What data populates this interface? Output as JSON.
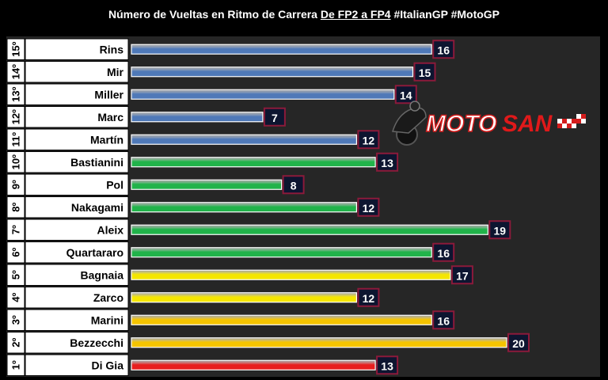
{
  "header": {
    "title_plain": "Número de Vueltas en Ritmo de Carrera ",
    "title_underlined": "De FP2 a FP4",
    "title_tail": " #ItalianGP #MotoGP"
  },
  "logo": {
    "text_moto": "MOTO",
    "text_san": "SAN"
  },
  "colors": {
    "panel": "#262626",
    "label_box": "#ffffff",
    "value_box_fill": "#0d1530",
    "value_box_border": "#8b1a3a"
  },
  "chart_data": {
    "type": "bar",
    "orientation": "horizontal",
    "title": "Número de Vueltas en Ritmo de Carrera De FP2 a FP4 #ItalianGP #MotoGP",
    "xlim": [
      0,
      20
    ],
    "grid": false,
    "legend": "none",
    "rows": [
      {
        "rank": "15º",
        "rider": "Rins",
        "value": 16,
        "color": "#4f79b8"
      },
      {
        "rank": "14º",
        "rider": "Mir",
        "value": 15,
        "color": "#4f79b8"
      },
      {
        "rank": "13º",
        "rider": "Miller",
        "value": 14,
        "color": "#4f79b8"
      },
      {
        "rank": "12º",
        "rider": "Marc",
        "value": 7,
        "color": "#4f79b8"
      },
      {
        "rank": "11º",
        "rider": "Martín",
        "value": 12,
        "color": "#4f79b8"
      },
      {
        "rank": "10º",
        "rider": "Bastianini",
        "value": 13,
        "color": "#21b34a"
      },
      {
        "rank": "9º",
        "rider": "Pol",
        "value": 8,
        "color": "#21b34a"
      },
      {
        "rank": "8º",
        "rider": "Nakagami",
        "value": 12,
        "color": "#21b34a"
      },
      {
        "rank": "7º",
        "rider": "Aleix",
        "value": 19,
        "color": "#21b34a"
      },
      {
        "rank": "6º",
        "rider": "Quartararo",
        "value": 16,
        "color": "#21b34a"
      },
      {
        "rank": "5º",
        "rider": "Bagnaia",
        "value": 17,
        "color": "#f5e600"
      },
      {
        "rank": "4º",
        "rider": "Zarco",
        "value": 12,
        "color": "#f5e600"
      },
      {
        "rank": "3º",
        "rider": "Marini",
        "value": 16,
        "color": "#f5c400"
      },
      {
        "rank": "2º",
        "rider": "Bezzecchi",
        "value": 20,
        "color": "#f5c400"
      },
      {
        "rank": "1º",
        "rider": "Di Gia",
        "value": 13,
        "color": "#e81e1e"
      }
    ]
  }
}
